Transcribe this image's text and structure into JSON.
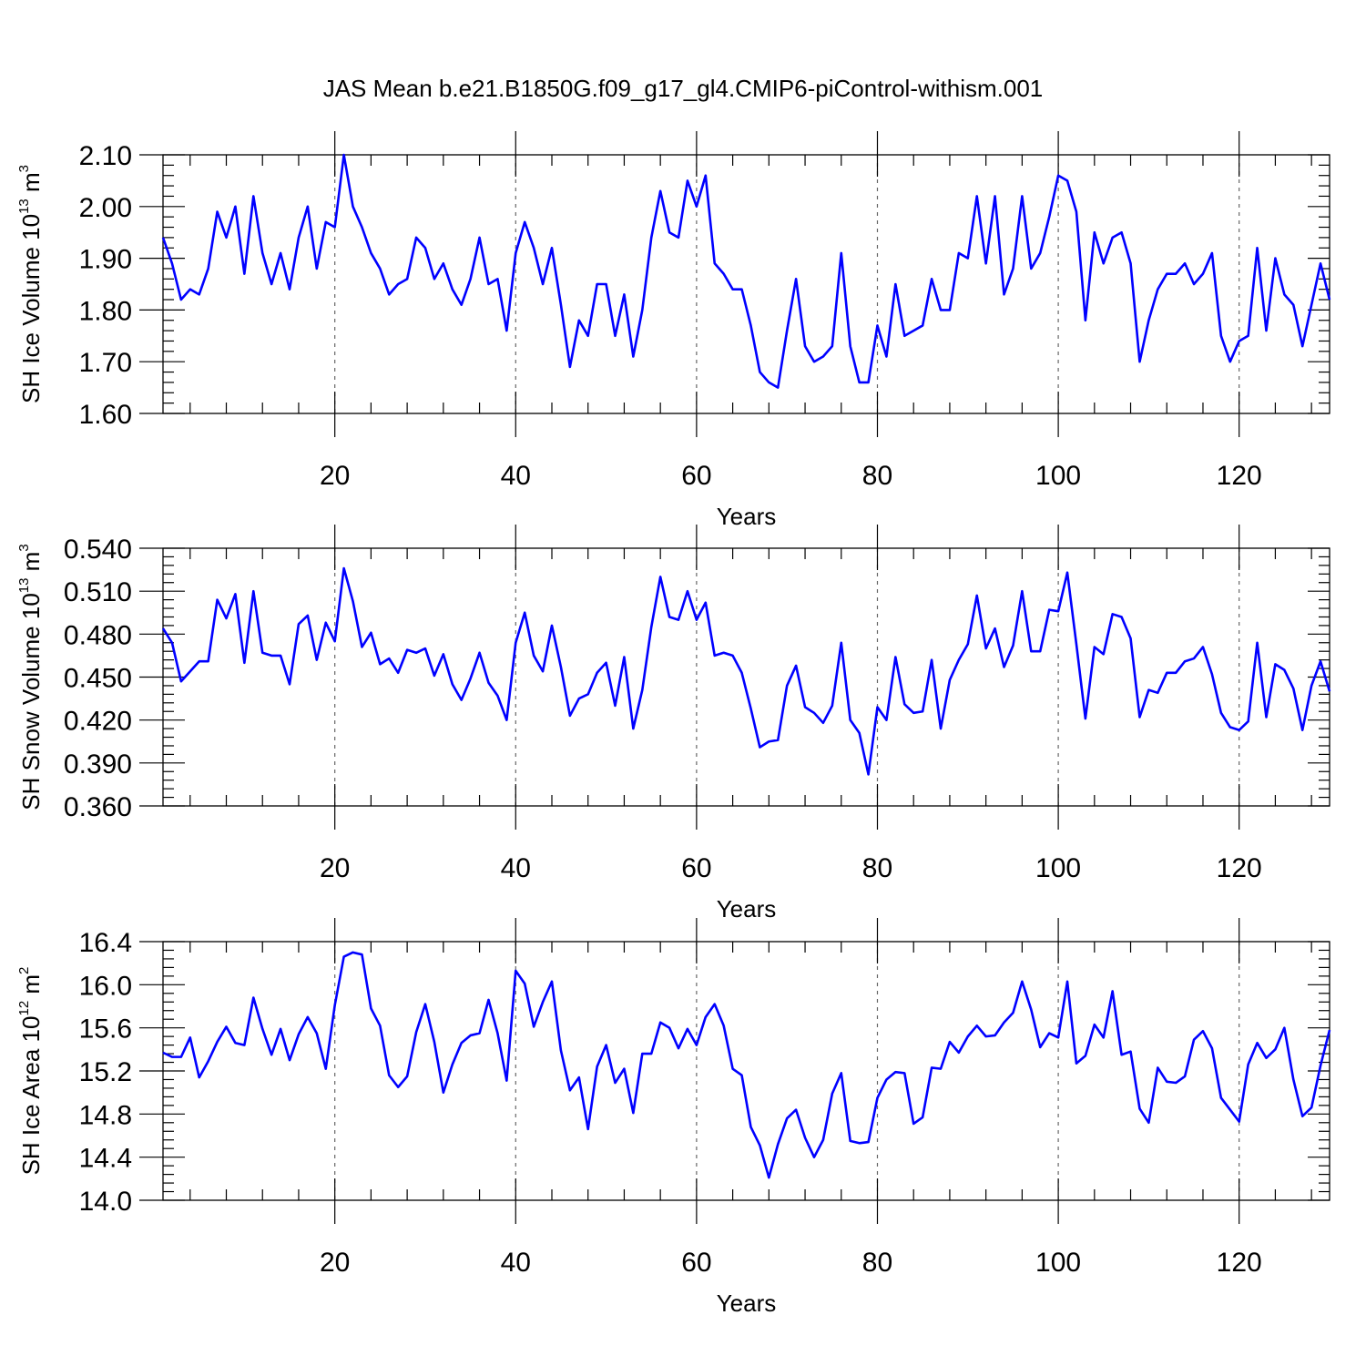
{
  "title": "JAS Mean b.e21.B1850G.f09_g17_gl4.CMIP6-piControl-withism.001",
  "colors": {
    "line": "#0000ff",
    "axis": "#000000",
    "grid": "#666666"
  },
  "chart_data": [
    {
      "type": "line",
      "ylabel": "SH Ice Volume 10",
      "ylabel_exp": "13",
      "ylabel_unit": " m",
      "ylabel_unit_exp": "3",
      "xlabel": "Years",
      "xlim": [
        1,
        130
      ],
      "ylim": [
        1.6,
        2.1
      ],
      "xticks": [
        20,
        40,
        60,
        80,
        100,
        120
      ],
      "xtick_labels": [
        "20",
        "40",
        "60",
        "80",
        "100",
        "120"
      ],
      "yticks": [
        1.6,
        1.7,
        1.8,
        1.9,
        2.0,
        2.1
      ],
      "ytick_labels": [
        "1.60",
        "1.70",
        "1.80",
        "1.90",
        "2.00",
        "2.10"
      ],
      "grid_x": true,
      "x_start": 1,
      "values": [
        1.94,
        1.89,
        1.82,
        1.84,
        1.83,
        1.88,
        1.99,
        1.94,
        2.0,
        1.87,
        2.02,
        1.91,
        1.85,
        1.91,
        1.84,
        1.94,
        2.0,
        1.88,
        1.97,
        1.96,
        2.1,
        2.0,
        1.96,
        1.91,
        1.88,
        1.83,
        1.85,
        1.86,
        1.94,
        1.92,
        1.86,
        1.89,
        1.84,
        1.81,
        1.86,
        1.94,
        1.85,
        1.86,
        1.76,
        1.91,
        1.97,
        1.92,
        1.85,
        1.92,
        1.81,
        1.69,
        1.78,
        1.75,
        1.85,
        1.85,
        1.75,
        1.83,
        1.71,
        1.8,
        1.94,
        2.03,
        1.95,
        1.94,
        2.05,
        2.0,
        2.06,
        1.89,
        1.87,
        1.84,
        1.84,
        1.77,
        1.68,
        1.66,
        1.65,
        1.76,
        1.86,
        1.73,
        1.7,
        1.71,
        1.73,
        1.91,
        1.73,
        1.66,
        1.66,
        1.77,
        1.71,
        1.85,
        1.75,
        1.76,
        1.77,
        1.86,
        1.8,
        1.8,
        1.91,
        1.9,
        2.02,
        1.89,
        2.02,
        1.83,
        1.88,
        2.02,
        1.88,
        1.91,
        1.98,
        2.06,
        2.05,
        1.99,
        1.78,
        1.95,
        1.89,
        1.94,
        1.95,
        1.89,
        1.7,
        1.78,
        1.84,
        1.87,
        1.87,
        1.89,
        1.85,
        1.87,
        1.91,
        1.75,
        1.7,
        1.74,
        1.75,
        1.92,
        1.76,
        1.9,
        1.83,
        1.81,
        1.73,
        1.81,
        1.89,
        1.82
      ]
    },
    {
      "type": "line",
      "ylabel": "SH Snow Volume 10",
      "ylabel_exp": "13",
      "ylabel_unit": " m",
      "ylabel_unit_exp": "3",
      "xlabel": "Years",
      "xlim": [
        1,
        130
      ],
      "ylim": [
        0.36,
        0.54
      ],
      "xticks": [
        20,
        40,
        60,
        80,
        100,
        120
      ],
      "xtick_labels": [
        "20",
        "40",
        "60",
        "80",
        "100",
        "120"
      ],
      "yticks": [
        0.36,
        0.39,
        0.42,
        0.45,
        0.48,
        0.51,
        0.54
      ],
      "ytick_labels": [
        "0.360",
        "0.390",
        "0.420",
        "0.450",
        "0.480",
        "0.510",
        "0.540"
      ],
      "grid_x": true,
      "x_start": 1,
      "values": [
        0.484,
        0.474,
        0.447,
        0.454,
        0.461,
        0.461,
        0.504,
        0.491,
        0.508,
        0.46,
        0.51,
        0.467,
        0.465,
        0.465,
        0.445,
        0.487,
        0.493,
        0.462,
        0.488,
        0.475,
        0.526,
        0.503,
        0.471,
        0.481,
        0.459,
        0.463,
        0.453,
        0.469,
        0.467,
        0.47,
        0.451,
        0.466,
        0.445,
        0.434,
        0.449,
        0.467,
        0.446,
        0.437,
        0.42,
        0.474,
        0.495,
        0.465,
        0.454,
        0.486,
        0.457,
        0.423,
        0.435,
        0.438,
        0.453,
        0.46,
        0.43,
        0.464,
        0.414,
        0.441,
        0.485,
        0.52,
        0.492,
        0.49,
        0.51,
        0.49,
        0.502,
        0.465,
        0.467,
        0.465,
        0.453,
        0.428,
        0.401,
        0.405,
        0.406,
        0.444,
        0.458,
        0.429,
        0.425,
        0.418,
        0.43,
        0.474,
        0.42,
        0.411,
        0.382,
        0.429,
        0.42,
        0.464,
        0.431,
        0.425,
        0.426,
        0.462,
        0.414,
        0.448,
        0.462,
        0.473,
        0.507,
        0.47,
        0.484,
        0.457,
        0.472,
        0.51,
        0.468,
        0.468,
        0.497,
        0.496,
        0.523,
        0.473,
        0.421,
        0.471,
        0.466,
        0.494,
        0.492,
        0.477,
        0.422,
        0.441,
        0.439,
        0.453,
        0.453,
        0.461,
        0.463,
        0.471,
        0.452,
        0.425,
        0.415,
        0.413,
        0.419,
        0.474,
        0.422,
        0.459,
        0.455,
        0.442,
        0.413,
        0.444,
        0.461,
        0.44
      ]
    },
    {
      "type": "line",
      "ylabel": "SH Ice Area 10",
      "ylabel_exp": "12",
      "ylabel_unit": " m",
      "ylabel_unit_exp": "2",
      "xlabel": "Years",
      "xlim": [
        1,
        130
      ],
      "ylim": [
        14.0,
        16.4
      ],
      "xticks": [
        20,
        40,
        60,
        80,
        100,
        120
      ],
      "xtick_labels": [
        "20",
        "40",
        "60",
        "80",
        "100",
        "120"
      ],
      "yticks": [
        14.0,
        14.4,
        14.8,
        15.2,
        15.6,
        16.0,
        16.4
      ],
      "ytick_labels": [
        "14.0",
        "14.4",
        "14.8",
        "15.2",
        "15.6",
        "16.0",
        "16.4"
      ],
      "grid_x": true,
      "x_start": 1,
      "values": [
        15.37,
        15.33,
        15.33,
        15.51,
        15.14,
        15.29,
        15.47,
        15.61,
        15.46,
        15.44,
        15.88,
        15.59,
        15.35,
        15.59,
        15.3,
        15.54,
        15.7,
        15.55,
        15.22,
        15.81,
        16.26,
        16.3,
        16.28,
        15.78,
        15.62,
        15.16,
        15.05,
        15.15,
        15.56,
        15.82,
        15.47,
        15.0,
        15.26,
        15.46,
        15.53,
        15.55,
        15.86,
        15.55,
        15.11,
        16.13,
        16.01,
        15.61,
        15.84,
        16.03,
        15.39,
        15.02,
        15.14,
        14.66,
        15.24,
        15.44,
        15.09,
        15.22,
        14.81,
        15.36,
        15.36,
        15.65,
        15.6,
        15.41,
        15.59,
        15.44,
        15.7,
        15.82,
        15.62,
        15.22,
        15.16,
        14.68,
        14.51,
        14.21,
        14.52,
        14.76,
        14.84,
        14.58,
        14.4,
        14.56,
        14.99,
        15.18,
        14.55,
        14.53,
        14.54,
        14.95,
        15.12,
        15.19,
        15.18,
        14.71,
        14.77,
        15.23,
        15.22,
        15.47,
        15.37,
        15.52,
        15.62,
        15.52,
        15.53,
        15.65,
        15.74,
        16.03,
        15.77,
        15.42,
        15.55,
        15.51,
        16.03,
        15.27,
        15.34,
        15.63,
        15.51,
        15.94,
        15.35,
        15.38,
        14.85,
        14.72,
        15.23,
        15.1,
        15.09,
        15.15,
        15.49,
        15.57,
        15.41,
        14.95,
        14.84,
        14.73,
        15.26,
        15.46,
        15.32,
        15.4,
        15.6,
        15.12,
        14.78,
        14.86,
        15.25,
        15.58
      ]
    }
  ]
}
